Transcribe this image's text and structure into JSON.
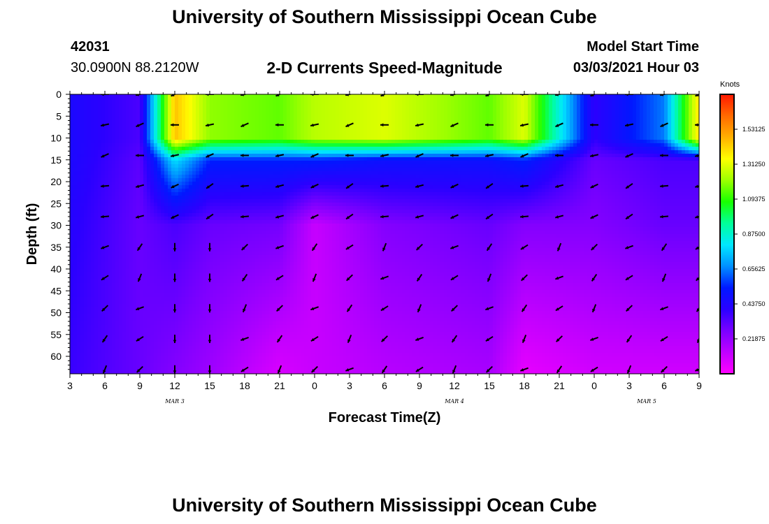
{
  "header": {
    "title": "University of Southern Mississippi Ocean Cube",
    "station_id": "42031",
    "station_coords": "30.0900N 88.2120W",
    "plot_title": "2-D Currents Speed-Magnitude",
    "model_start_label": "Model Start Time",
    "model_start_value": "03/03/2021 Hour 03"
  },
  "footer": {
    "title": "University of Southern Mississippi Ocean Cube"
  },
  "colors": {
    "colormap": [
      "#ff00ff",
      "#c000ff",
      "#7a00ff",
      "#2a00ff",
      "#0018ff",
      "#0090ff",
      "#00e8ff",
      "#00ff99",
      "#18ff00",
      "#9cff00",
      "#ffff00",
      "#ffb000",
      "#ff6a00",
      "#ff1800"
    ],
    "arrow": "#000000"
  },
  "chart_data": {
    "type": "heatmap",
    "title": "2-D Currents Speed-Magnitude",
    "xlabel": "Forecast Time(Z)",
    "ylabel": "Depth (ft)",
    "x_tick_labels": [
      "3",
      "6",
      "9",
      "12",
      "15",
      "18",
      "21",
      "0",
      "3",
      "6",
      "9",
      "12",
      "15",
      "18",
      "21",
      "0",
      "3",
      "6",
      "9"
    ],
    "x_hours_since_start": [
      0,
      3,
      6,
      9,
      12,
      15,
      18,
      21,
      24,
      27,
      30,
      33,
      36,
      39,
      42,
      45,
      48,
      51,
      54
    ],
    "day_labels": [
      {
        "text": "MAR 3",
        "hour": 9
      },
      {
        "text": "MAR 4",
        "hour": 33
      },
      {
        "text": "MAR 5",
        "hour": 49.5
      }
    ],
    "y_ticks": [
      0,
      5,
      10,
      15,
      20,
      25,
      30,
      35,
      40,
      45,
      50,
      55,
      60
    ],
    "ylim": [
      0,
      64
    ],
    "y_inverted": true,
    "colorbar": {
      "units": "Knots",
      "ticks": [
        "1.53125",
        "1.31250",
        "1.09375",
        "0.87500",
        "0.65625",
        "0.43750",
        "0.21875"
      ],
      "tick_values": [
        1.53125,
        1.3125,
        1.09375,
        0.875,
        0.65625,
        0.4375,
        0.21875
      ],
      "range": [
        0,
        1.75
      ]
    },
    "arrow_hours": [
      3,
      6,
      9,
      12,
      15,
      18,
      21,
      24,
      27,
      30,
      33,
      36,
      39,
      42,
      45,
      48,
      51,
      54
    ],
    "arrow_depths": [
      0,
      7,
      14,
      21,
      28,
      35,
      42,
      49,
      56,
      63
    ],
    "speed_profile": [
      {
        "hour": 0,
        "speed_0_10ft": 0.45,
        "speed_15ft": 0.45,
        "speed_30ft": 0.42,
        "speed_60ft": 0.38
      },
      {
        "hour": 6,
        "speed_0_10ft": 0.35,
        "speed_15ft": 0.32,
        "speed_30ft": 0.3,
        "speed_60ft": 0.3
      },
      {
        "hour": 9,
        "speed_0_10ft": 1.45,
        "speed_15ft": 0.8,
        "speed_30ft": 0.35,
        "speed_60ft": 0.25
      },
      {
        "hour": 12,
        "speed_0_10ft": 1.2,
        "speed_15ft": 0.55,
        "speed_30ft": 0.3,
        "speed_60ft": 0.2
      },
      {
        "hour": 18,
        "speed_0_10ft": 1.15,
        "speed_15ft": 0.55,
        "speed_30ft": 0.28,
        "speed_60ft": 0.08
      },
      {
        "hour": 21,
        "speed_0_10ft": 1.25,
        "speed_15ft": 0.55,
        "speed_30ft": 0.12,
        "speed_60ft": 0.12
      },
      {
        "hour": 27,
        "speed_0_10ft": 1.3,
        "speed_15ft": 0.5,
        "speed_30ft": 0.25,
        "speed_60ft": 0.15
      },
      {
        "hour": 36,
        "speed_0_10ft": 1.15,
        "speed_15ft": 0.5,
        "speed_30ft": 0.3,
        "speed_60ft": 0.18
      },
      {
        "hour": 39,
        "speed_0_10ft": 1.3,
        "speed_15ft": 0.55,
        "speed_30ft": 0.25,
        "speed_60ft": 0.05
      },
      {
        "hour": 45,
        "speed_0_10ft": 0.4,
        "speed_15ft": 0.3,
        "speed_30ft": 0.25,
        "speed_60ft": 0.1
      },
      {
        "hour": 51,
        "speed_0_10ft": 0.65,
        "speed_15ft": 0.35,
        "speed_30ft": 0.3,
        "speed_60ft": 0.1
      },
      {
        "hour": 54,
        "speed_0_10ft": 1.4,
        "speed_15ft": 0.35,
        "speed_30ft": 0.3,
        "speed_60ft": 0.1
      }
    ]
  }
}
